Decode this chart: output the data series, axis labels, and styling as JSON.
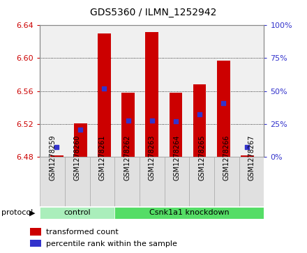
{
  "title": "GDS5360 / ILMN_1252942",
  "samples": [
    "GSM1278259",
    "GSM1278260",
    "GSM1278261",
    "GSM1278262",
    "GSM1278263",
    "GSM1278264",
    "GSM1278265",
    "GSM1278266",
    "GSM1278267"
  ],
  "bar_bottom": 6.48,
  "bar_tops": [
    6.482,
    6.521,
    6.63,
    6.558,
    6.632,
    6.558,
    6.568,
    6.597,
    6.482
  ],
  "percentile_values": [
    6.492,
    6.513,
    6.563,
    6.524,
    6.524,
    6.523,
    6.532,
    6.545,
    6.492
  ],
  "ylim_left": [
    6.48,
    6.64
  ],
  "ylim_right": [
    0,
    100
  ],
  "yticks_left": [
    6.48,
    6.52,
    6.56,
    6.6,
    6.64
  ],
  "yticks_right": [
    0,
    25,
    50,
    75,
    100
  ],
  "bar_color": "#cc0000",
  "blue_color": "#3333cc",
  "protocol_groups": [
    {
      "label": "control",
      "start": 0,
      "end": 3,
      "color": "#aaeebb"
    },
    {
      "label": "Csnk1a1 knockdown",
      "start": 3,
      "end": 9,
      "color": "#55dd66"
    }
  ],
  "protocol_label": "protocol",
  "legend_items": [
    {
      "label": "transformed count",
      "color": "#cc0000"
    },
    {
      "label": "percentile rank within the sample",
      "color": "#3333cc"
    }
  ],
  "background_color": "#ffffff",
  "plot_bg": "#f0f0f0",
  "tick_label_color_left": "#cc0000",
  "tick_label_color_right": "#3333cc",
  "title_fontsize": 10,
  "ytick_fontsize": 8,
  "xtick_fontsize": 7,
  "legend_fontsize": 8
}
